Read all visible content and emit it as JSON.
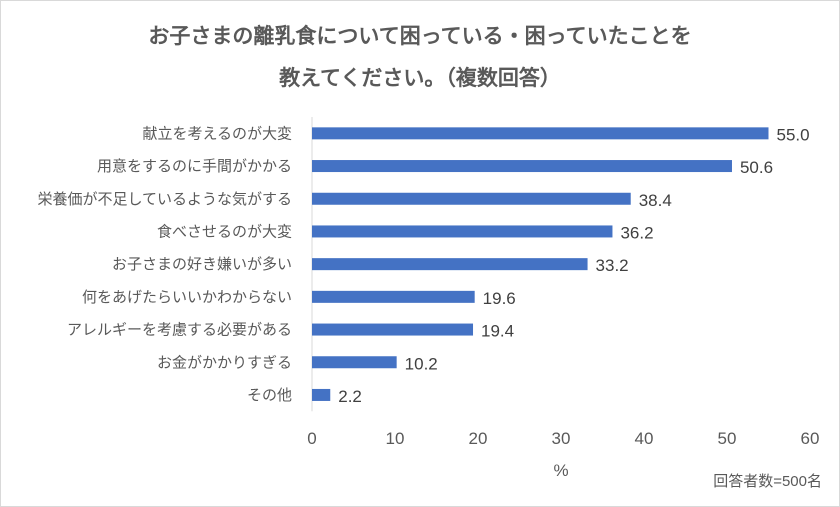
{
  "chart_data": {
    "type": "bar",
    "orientation": "horizontal",
    "title_lines": [
      "お子さまの離乳食について困っている・困っていたことを",
      "教えてください。（複数回答）"
    ],
    "categories": [
      "献立を考えるのが大変",
      "用意をするのに手間がかかる",
      "栄養価が不足しているような気がする",
      "食べさせるのが大変",
      "お子さまの好き嫌いが多い",
      "何をあげたらいいかわからない",
      "アレルギーを考慮する必要がある",
      "お金がかかりすぎる",
      "その他"
    ],
    "values": [
      55.0,
      50.6,
      38.4,
      36.2,
      33.2,
      19.6,
      19.4,
      10.2,
      2.2
    ],
    "value_labels": [
      "55.0",
      "50.6",
      "38.4",
      "36.2",
      "33.2",
      "19.6",
      "19.4",
      "10.2",
      "2.2"
    ],
    "xlabel": "%",
    "xlim": [
      0,
      60
    ],
    "xticks": [
      "0",
      "10",
      "20",
      "30",
      "40",
      "50",
      "60"
    ],
    "grid": false,
    "bar_color": "#4472C4",
    "note": "回答者数=500名"
  }
}
